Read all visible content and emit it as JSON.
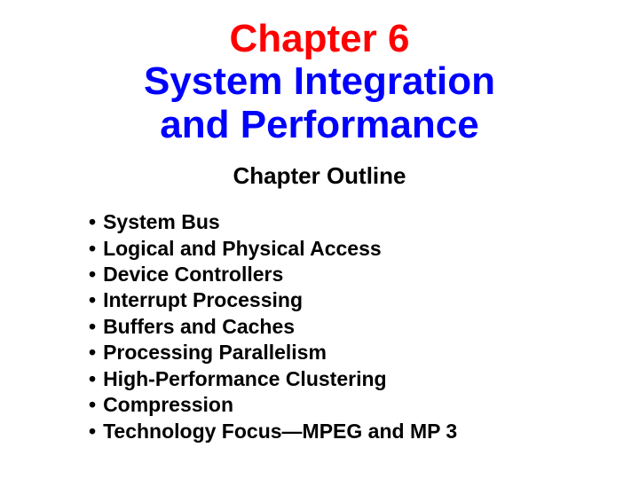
{
  "colors": {
    "title_line1": "#ff0000",
    "title_line2": "#0000ff",
    "subtitle": "#000000",
    "bullet_text": "#000000",
    "background": "#ffffff"
  },
  "typography": {
    "title_fontsize": 44,
    "subtitle_fontsize": 26,
    "bullet_fontsize": 23,
    "font_family": "Comic Sans MS"
  },
  "title": {
    "line1": "Chapter 6",
    "line2a": "System Integration",
    "line2b": "and Performance"
  },
  "subtitle": "Chapter Outline",
  "bullets": [
    "System Bus",
    "Logical and Physical Access",
    "Device Controllers",
    "Interrupt Processing",
    "Buffers and Caches",
    "Processing Parallelism",
    "High-Performance Clustering",
    "Compression",
    "Technology Focus—MPEG and MP 3"
  ],
  "bullet_marker": "•"
}
